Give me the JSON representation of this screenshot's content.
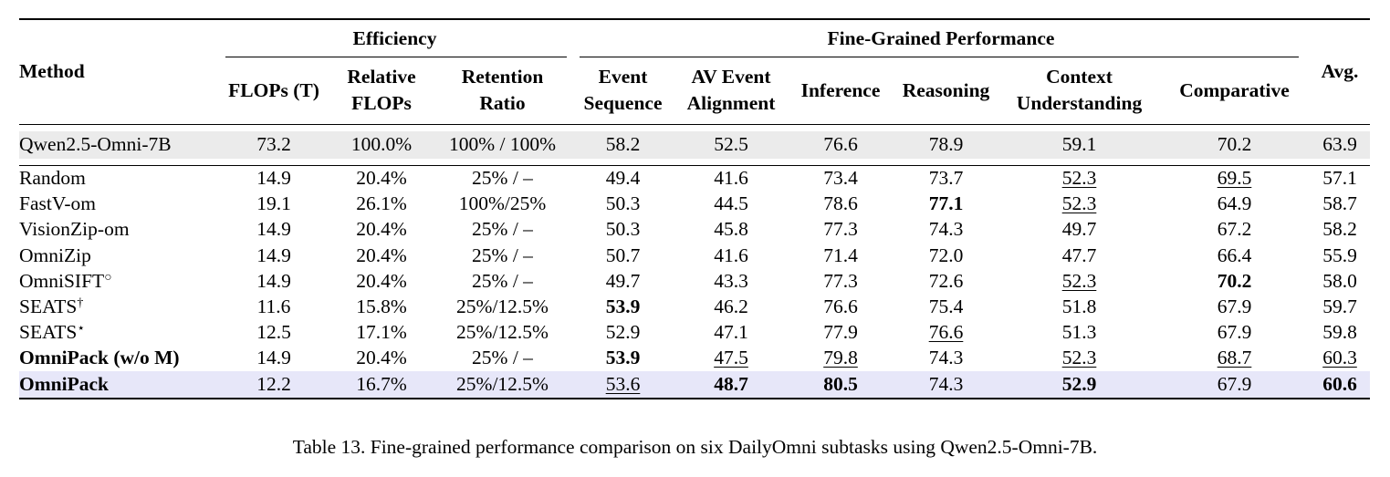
{
  "table": {
    "headers": {
      "method": "Method",
      "efficiency_group": "Efficiency",
      "performance_group": "Fine-Grained Performance",
      "avg": "Avg.",
      "columns": [
        {
          "line1": "FLOPs (T)",
          "line2": ""
        },
        {
          "line1": "Relative",
          "line2": "FLOPs"
        },
        {
          "line1": "Retention",
          "line2": "Ratio"
        },
        {
          "line1": "Event",
          "line2": "Sequence"
        },
        {
          "line1": "AV Event",
          "line2": "Alignment"
        },
        {
          "line1": "Inference",
          "line2": ""
        },
        {
          "line1": "Reasoning",
          "line2": ""
        },
        {
          "line1": "Context",
          "line2": "Understanding"
        },
        {
          "line1": "Comparative",
          "line2": ""
        }
      ]
    },
    "baseline": {
      "method": "Qwen2.5-Omni-7B",
      "cells": [
        "73.2",
        "100.0%",
        "100% / 100%",
        "58.2",
        "52.5",
        "76.6",
        "78.9",
        "59.1",
        "70.2",
        "63.9"
      ]
    },
    "rows": [
      {
        "method": "Random",
        "sup": "",
        "bold_method": false,
        "cells": [
          "14.9",
          "20.4%",
          "25% / –",
          "49.4",
          "41.6",
          "73.4",
          "73.7",
          "52.3",
          "69.5",
          "57.1"
        ],
        "bold": [],
        "underline": [
          7,
          8
        ]
      },
      {
        "method": "FastV-om",
        "sup": "",
        "bold_method": false,
        "cells": [
          "19.1",
          "26.1%",
          "100%/25%",
          "50.3",
          "44.5",
          "78.6",
          "77.1",
          "52.3",
          "64.9",
          "58.7"
        ],
        "bold": [
          6
        ],
        "underline": [
          7
        ]
      },
      {
        "method": "VisionZip-om",
        "sup": "",
        "bold_method": false,
        "cells": [
          "14.9",
          "20.4%",
          "25% / –",
          "50.3",
          "45.8",
          "77.3",
          "74.3",
          "49.7",
          "67.2",
          "58.2"
        ],
        "bold": [],
        "underline": []
      },
      {
        "method": "OmniZip",
        "sup": "",
        "bold_method": false,
        "cells": [
          "14.9",
          "20.4%",
          "25% / –",
          "50.7",
          "41.6",
          "71.4",
          "72.0",
          "47.7",
          "66.4",
          "55.9"
        ],
        "bold": [],
        "underline": []
      },
      {
        "method": "OmniSIFT",
        "sup": "○",
        "bold_method": false,
        "cells": [
          "14.9",
          "20.4%",
          "25% / –",
          "49.7",
          "43.3",
          "77.3",
          "72.6",
          "52.3",
          "70.2",
          "58.0"
        ],
        "bold": [
          8
        ],
        "underline": [
          7
        ]
      },
      {
        "method": "SEATS",
        "sup": "†",
        "bold_method": false,
        "cells": [
          "11.6",
          "15.8%",
          "25%/12.5%",
          "53.9",
          "46.2",
          "76.6",
          "75.4",
          "51.8",
          "67.9",
          "59.7"
        ],
        "bold": [
          3
        ],
        "underline": []
      },
      {
        "method": "SEATS",
        "sup": "⋆",
        "bold_method": false,
        "cells": [
          "12.5",
          "17.1%",
          "25%/12.5%",
          "52.9",
          "47.1",
          "77.9",
          "76.6",
          "51.3",
          "67.9",
          "59.8"
        ],
        "bold": [],
        "underline": [
          6
        ]
      },
      {
        "method": "OmniPack (w/o M)",
        "sup": "",
        "bold_method": true,
        "cells": [
          "14.9",
          "20.4%",
          "25% / –",
          "53.9",
          "47.5",
          "79.8",
          "74.3",
          "52.3",
          "68.7",
          "60.3"
        ],
        "bold": [
          3
        ],
        "underline": [
          4,
          5,
          7,
          8,
          9
        ]
      }
    ],
    "ours": {
      "method": "OmniPack",
      "cells": [
        "12.2",
        "16.7%",
        "25%/12.5%",
        "53.6",
        "48.7",
        "80.5",
        "74.3",
        "52.9",
        "67.9",
        "60.6"
      ],
      "bold": [
        4,
        5,
        7,
        9
      ],
      "underline": [
        3
      ]
    }
  },
  "caption": "Table 13. Fine-grained performance comparison on six DailyOmni subtasks using Qwen2.5-Omni-7B.",
  "colors": {
    "baseline_row_bg": "#ebebeb",
    "ours_row_bg": "#e7e7f9"
  }
}
